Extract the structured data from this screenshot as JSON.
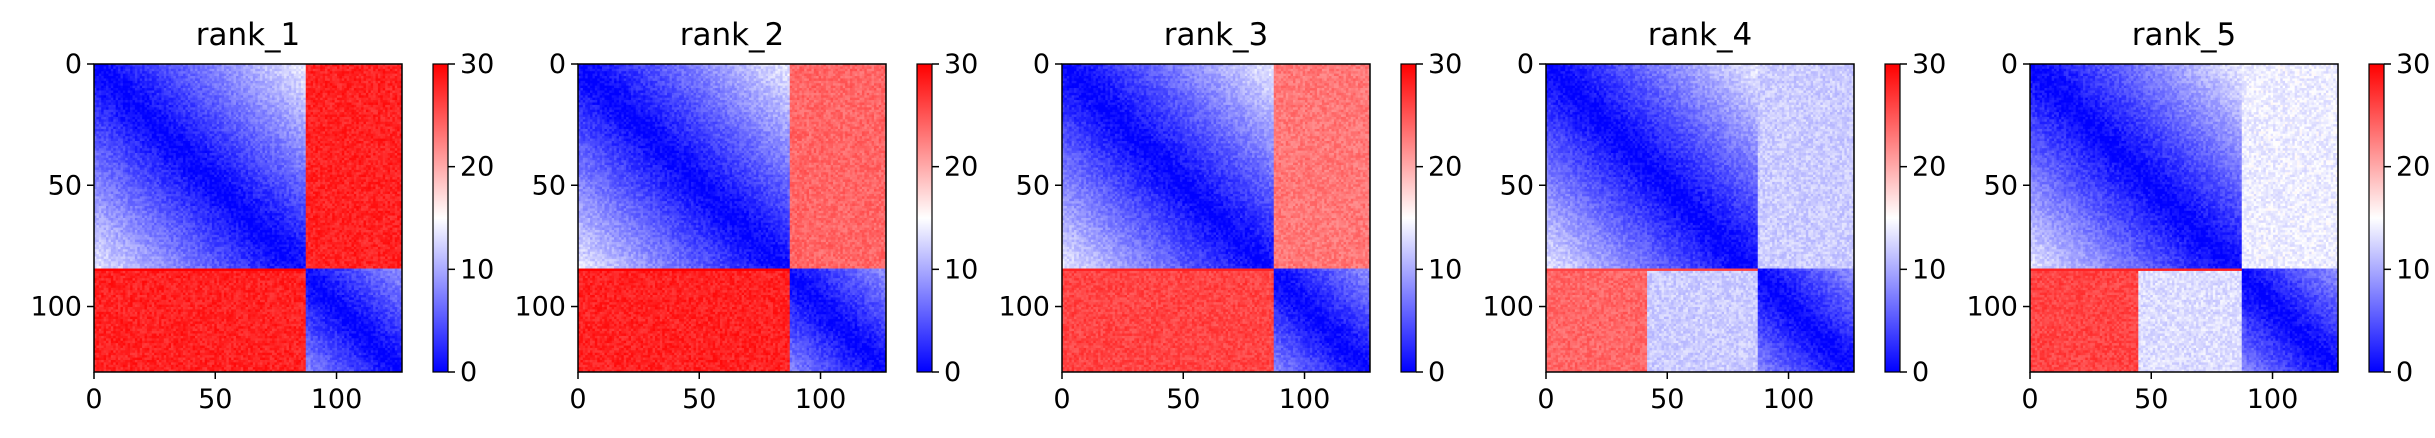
{
  "chart_data": [
    {
      "type": "heatmap",
      "title": "rank_1",
      "xlim": [
        0,
        127
      ],
      "ylim": [
        127,
        0
      ],
      "x_ticks": [
        "0",
        "50",
        "100"
      ],
      "x_tick_values": [
        0,
        50,
        100
      ],
      "y_ticks": [
        "0",
        "50",
        "100"
      ],
      "y_tick_values": [
        0,
        50,
        100
      ],
      "colorbar": {
        "min": 0,
        "max": 30,
        "ticks": [
          "0",
          "10",
          "20",
          "30"
        ],
        "tick_values": [
          0,
          10,
          20,
          30
        ],
        "colormap": "bwr"
      },
      "pattern": {
        "split_row": 85,
        "split_col": 88,
        "upper_right": 28,
        "lower_left": 28,
        "lower_mid_start": 85,
        "lower_mid": 28,
        "upper_right_start": 88
      }
    },
    {
      "type": "heatmap",
      "title": "rank_2",
      "xlim": [
        0,
        127
      ],
      "ylim": [
        127,
        0
      ],
      "x_ticks": [
        "0",
        "50",
        "100"
      ],
      "x_tick_values": [
        0,
        50,
        100
      ],
      "y_ticks": [
        "0",
        "50",
        "100"
      ],
      "y_tick_values": [
        0,
        50,
        100
      ],
      "colorbar": {
        "min": 0,
        "max": 30,
        "ticks": [
          "0",
          "10",
          "20",
          "30"
        ],
        "tick_values": [
          0,
          10,
          20,
          30
        ],
        "colormap": "bwr"
      },
      "pattern": {
        "split_row": 85,
        "split_col": 88,
        "upper_right": 24,
        "lower_left": 28,
        "lower_mid_start": 85,
        "lower_mid": 28,
        "upper_right_start": 88
      }
    },
    {
      "type": "heatmap",
      "title": "rank_3",
      "xlim": [
        0,
        127
      ],
      "ylim": [
        127,
        0
      ],
      "x_ticks": [
        "0",
        "50",
        "100"
      ],
      "x_tick_values": [
        0,
        50,
        100
      ],
      "y_ticks": [
        "0",
        "50",
        "100"
      ],
      "y_tick_values": [
        0,
        50,
        100
      ],
      "colorbar": {
        "min": 0,
        "max": 30,
        "ticks": [
          "0",
          "10",
          "20",
          "30"
        ],
        "tick_values": [
          0,
          10,
          20,
          30
        ],
        "colormap": "bwr"
      },
      "pattern": {
        "split_row": 85,
        "split_col": 88,
        "upper_right": 23,
        "lower_left": 26,
        "lower_mid_start": 85,
        "lower_mid": 26,
        "upper_right_start": 88
      }
    },
    {
      "type": "heatmap",
      "title": "rank_4",
      "xlim": [
        0,
        127
      ],
      "ylim": [
        127,
        0
      ],
      "x_ticks": [
        "0",
        "50",
        "100"
      ],
      "x_tick_values": [
        0,
        50,
        100
      ],
      "y_ticks": [
        "0",
        "50",
        "100"
      ],
      "y_tick_values": [
        0,
        50,
        100
      ],
      "colorbar": {
        "min": 0,
        "max": 30,
        "ticks": [
          "0",
          "10",
          "20",
          "30"
        ],
        "tick_values": [
          0,
          10,
          20,
          30
        ],
        "colormap": "bwr"
      },
      "pattern": {
        "split_row": 85,
        "split_col": 88,
        "upper_right": 12,
        "lower_left": 24,
        "lower_mid_start": 42,
        "lower_mid": 12,
        "upper_right_start": 82
      }
    },
    {
      "type": "heatmap",
      "title": "rank_5",
      "xlim": [
        0,
        127
      ],
      "ylim": [
        127,
        0
      ],
      "x_ticks": [
        "0",
        "50",
        "100"
      ],
      "x_tick_values": [
        0,
        50,
        100
      ],
      "y_ticks": [
        "0",
        "50",
        "100"
      ],
      "y_tick_values": [
        0,
        50,
        100
      ],
      "colorbar": {
        "min": 0,
        "max": 30,
        "ticks": [
          "0",
          "10",
          "20",
          "30"
        ],
        "tick_values": [
          0,
          10,
          20,
          30
        ],
        "colormap": "bwr"
      },
      "pattern": {
        "split_row": 85,
        "split_col": 88,
        "upper_right": 14,
        "lower_left": 26,
        "lower_mid_start": 45,
        "lower_mid": 13,
        "upper_right_start": 80
      }
    }
  ]
}
